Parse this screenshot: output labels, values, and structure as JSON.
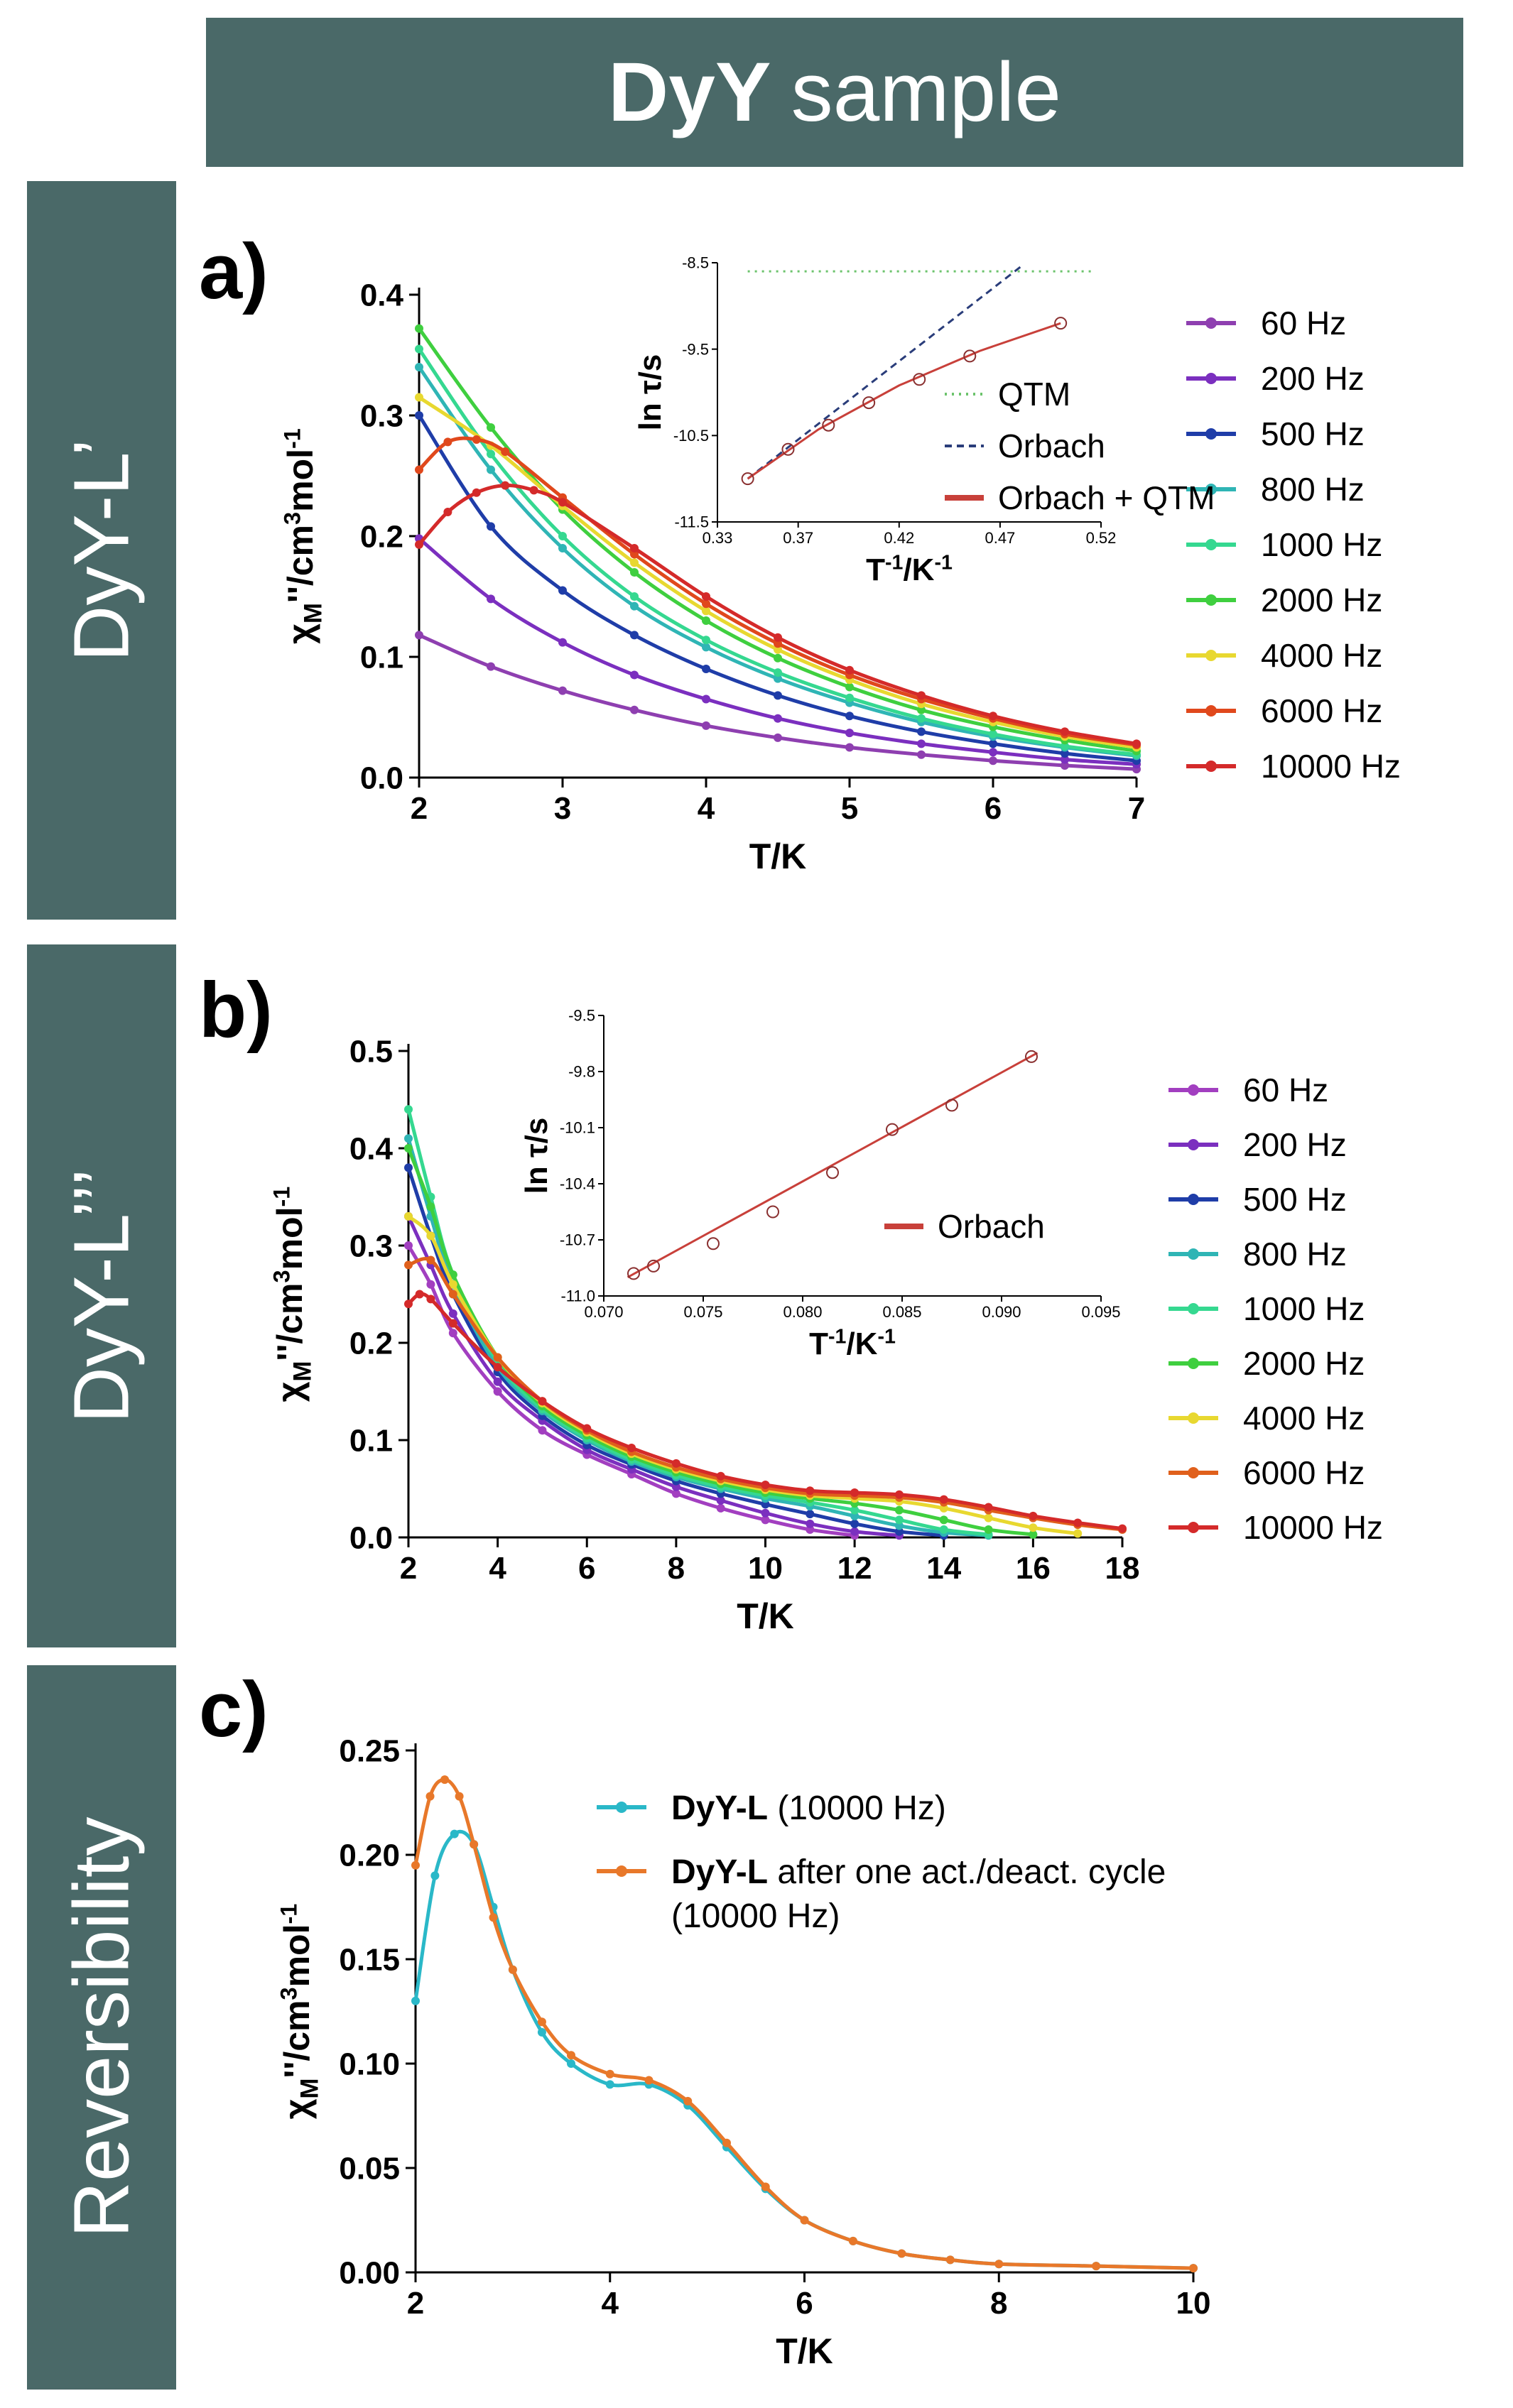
{
  "header": {
    "title_bold": "DyY",
    "title_rest": "sample"
  },
  "side_labels": [
    "DyY-L’",
    "DyY-L’’’",
    "Reversibility"
  ],
  "colors": {
    "panel": "#4a6968"
  },
  "chart_data": [
    {
      "id": "a",
      "panel_label": "a)",
      "type": "line",
      "xlabel": "T/K",
      "ylabel_main": "χ",
      "ylabel_sub": "M",
      "ylabel_rest": "''/cm",
      "ylabel_sup": "3",
      "ylabel_tail": "mol",
      "ylabel_sup2": "-1",
      "xlim": [
        2,
        7
      ],
      "ylim": [
        0,
        0.4
      ],
      "xticks": [
        2,
        3,
        4,
        5,
        6,
        7
      ],
      "yticks": [
        0.0,
        0.1,
        0.2,
        0.3,
        0.4
      ],
      "xtick_labels": [
        "2",
        "3",
        "4",
        "5",
        "6",
        "7"
      ],
      "ytick_labels": [
        "0.0",
        "0.1",
        "0.2",
        "0.3",
        "0.4"
      ],
      "series": [
        {
          "name": "60 Hz",
          "color": "#8e3fb0",
          "x": [
            2.0,
            2.5,
            3.0,
            3.5,
            4.0,
            4.5,
            5.0,
            5.5,
            6.0,
            6.5,
            7.0
          ],
          "y": [
            0.118,
            0.092,
            0.072,
            0.056,
            0.043,
            0.033,
            0.025,
            0.019,
            0.014,
            0.01,
            0.007
          ]
        },
        {
          "name": "200 Hz",
          "color": "#7b2fbf",
          "x": [
            2.0,
            2.5,
            3.0,
            3.5,
            4.0,
            4.5,
            5.0,
            5.5,
            6.0,
            6.5,
            7.0
          ],
          "y": [
            0.198,
            0.148,
            0.112,
            0.085,
            0.065,
            0.049,
            0.037,
            0.028,
            0.021,
            0.015,
            0.011
          ]
        },
        {
          "name": "500 Hz",
          "color": "#1f3da8",
          "x": [
            2.0,
            2.5,
            3.0,
            3.5,
            4.0,
            4.5,
            5.0,
            5.5,
            6.0,
            6.5,
            7.0
          ],
          "y": [
            0.3,
            0.208,
            0.155,
            0.118,
            0.09,
            0.068,
            0.051,
            0.038,
            0.028,
            0.02,
            0.014
          ]
        },
        {
          "name": "800 Hz",
          "color": "#2fb5b5",
          "x": [
            2.0,
            2.5,
            3.0,
            3.5,
            4.0,
            4.5,
            5.0,
            5.5,
            6.0,
            6.5,
            7.0
          ],
          "y": [
            0.34,
            0.255,
            0.19,
            0.142,
            0.108,
            0.082,
            0.062,
            0.046,
            0.034,
            0.025,
            0.018
          ]
        },
        {
          "name": "1000 Hz",
          "color": "#35d890",
          "x": [
            2.0,
            2.5,
            3.0,
            3.5,
            4.0,
            4.5,
            5.0,
            5.5,
            6.0,
            6.5,
            7.0
          ],
          "y": [
            0.355,
            0.268,
            0.2,
            0.15,
            0.114,
            0.087,
            0.066,
            0.049,
            0.036,
            0.026,
            0.019
          ]
        },
        {
          "name": "2000 Hz",
          "color": "#3fcf3f",
          "x": [
            2.0,
            2.5,
            3.0,
            3.5,
            4.0,
            4.5,
            5.0,
            5.5,
            6.0,
            6.5,
            7.0
          ],
          "y": [
            0.372,
            0.29,
            0.222,
            0.17,
            0.13,
            0.099,
            0.075,
            0.056,
            0.042,
            0.031,
            0.022
          ]
        },
        {
          "name": "4000 Hz",
          "color": "#e8d830",
          "x": [
            2.0,
            2.5,
            3.0,
            3.5,
            4.0,
            4.5,
            5.0,
            5.5,
            6.0,
            6.5,
            7.0
          ],
          "y": [
            0.315,
            0.275,
            0.225,
            0.178,
            0.138,
            0.106,
            0.081,
            0.061,
            0.046,
            0.034,
            0.025
          ]
        },
        {
          "name": "6000 Hz",
          "color": "#e0481c",
          "x": [
            2.0,
            2.2,
            2.4,
            2.6,
            3.0,
            3.5,
            4.0,
            4.5,
            5.0,
            5.5,
            6.0,
            6.5,
            7.0
          ],
          "y": [
            0.255,
            0.278,
            0.28,
            0.27,
            0.232,
            0.185,
            0.144,
            0.111,
            0.085,
            0.065,
            0.049,
            0.036,
            0.027
          ]
        },
        {
          "name": "10000 Hz",
          "color": "#d42a2a",
          "x": [
            2.0,
            2.2,
            2.4,
            2.6,
            2.8,
            3.0,
            3.5,
            4.0,
            4.5,
            5.0,
            5.5,
            6.0,
            6.5,
            7.0
          ],
          "y": [
            0.193,
            0.22,
            0.236,
            0.242,
            0.238,
            0.228,
            0.19,
            0.15,
            0.116,
            0.089,
            0.068,
            0.051,
            0.038,
            0.028
          ]
        }
      ],
      "inset": {
        "xlabel": "T",
        "xlabel_sup": "-1",
        "xlabel_rest": "/K",
        "xlabel_sup2": "-1",
        "ylabel": "ln τ/s",
        "xlim": [
          0.33,
          0.52
        ],
        "ylim": [
          -11.5,
          -8.5
        ],
        "xticks": [
          0.33,
          0.37,
          0.42,
          0.47,
          0.52
        ],
        "xtick_labels": [
          "0.33",
          "0.37",
          "0.42",
          "0.47",
          "0.52"
        ],
        "yticks": [
          -11.5,
          -10.5,
          -9.5,
          -8.5
        ],
        "ytick_labels": [
          "-11.5",
          "-10.5",
          "-9.5",
          "-8.5"
        ],
        "points": {
          "x": [
            0.345,
            0.365,
            0.385,
            0.405,
            0.43,
            0.455,
            0.5
          ],
          "y": [
            -11.0,
            -10.66,
            -10.38,
            -10.12,
            -9.85,
            -9.58,
            -9.2
          ]
        },
        "legend": [
          {
            "name": "QTM",
            "style": "dotted",
            "color": "#6cc36c"
          },
          {
            "name": "Orbach",
            "style": "dashed",
            "color": "#2a3d7a"
          },
          {
            "name": "Orbach + QTM",
            "style": "solid",
            "color": "#c8403a"
          }
        ],
        "lines": {
          "qtm": {
            "x": [
              0.345,
              0.515
            ],
            "y": [
              -8.6,
              -8.6
            ]
          },
          "orbach": {
            "x": [
              0.345,
              0.48
            ],
            "y": [
              -11.0,
              -8.55
            ]
          },
          "fit": {
            "x": [
              0.345,
              0.38,
              0.42,
              0.46,
              0.5
            ],
            "y": [
              -11.0,
              -10.43,
              -9.92,
              -9.52,
              -9.2
            ]
          }
        }
      }
    },
    {
      "id": "b",
      "panel_label": "b)",
      "type": "line",
      "xlabel": "T/K",
      "ylabel_main": "χ",
      "ylabel_sub": "M",
      "ylabel_rest": "''/cm",
      "ylabel_sup": "3",
      "ylabel_tail": "mol",
      "ylabel_sup2": "-1",
      "xlim": [
        2,
        18
      ],
      "ylim": [
        0,
        0.5
      ],
      "xticks": [
        2,
        4,
        6,
        8,
        10,
        12,
        14,
        16,
        18
      ],
      "yticks": [
        0.0,
        0.1,
        0.2,
        0.3,
        0.4,
        0.5
      ],
      "xtick_labels": [
        "2",
        "4",
        "6",
        "8",
        "10",
        "12",
        "14",
        "16",
        "18"
      ],
      "ytick_labels": [
        "0.0",
        "0.1",
        "0.2",
        "0.3",
        "0.4",
        "0.5"
      ],
      "series": [
        {
          "name": "60 Hz",
          "color": "#a23fc0",
          "x": [
            2,
            2.5,
            3,
            4,
            5,
            6,
            7,
            8,
            9,
            10,
            11,
            12
          ],
          "y": [
            0.3,
            0.26,
            0.21,
            0.15,
            0.11,
            0.085,
            0.065,
            0.045,
            0.03,
            0.018,
            0.008,
            0.002
          ]
        },
        {
          "name": "200 Hz",
          "color": "#7b2fbf",
          "x": [
            2,
            2.5,
            3,
            4,
            5,
            6,
            7,
            8,
            9,
            10,
            11,
            12,
            13
          ],
          "y": [
            0.33,
            0.28,
            0.23,
            0.16,
            0.12,
            0.09,
            0.07,
            0.052,
            0.038,
            0.025,
            0.014,
            0.006,
            0.002
          ]
        },
        {
          "name": "500 Hz",
          "color": "#1f3da8",
          "x": [
            2,
            2.5,
            3,
            4,
            5,
            6,
            7,
            8,
            9,
            10,
            11,
            12,
            13,
            14
          ],
          "y": [
            0.38,
            0.31,
            0.25,
            0.17,
            0.125,
            0.095,
            0.075,
            0.058,
            0.045,
            0.034,
            0.024,
            0.014,
            0.006,
            0.002
          ]
        },
        {
          "name": "800 Hz",
          "color": "#2fb5b5",
          "x": [
            2,
            2.5,
            3,
            4,
            5,
            6,
            7,
            8,
            9,
            10,
            11,
            12,
            13,
            14,
            15
          ],
          "y": [
            0.41,
            0.33,
            0.26,
            0.175,
            0.13,
            0.1,
            0.078,
            0.062,
            0.05,
            0.04,
            0.032,
            0.022,
            0.012,
            0.005,
            0.002
          ]
        },
        {
          "name": "1000 Hz",
          "color": "#35d890",
          "x": [
            2,
            2.5,
            3,
            4,
            5,
            6,
            7,
            8,
            9,
            10,
            11,
            12,
            13,
            14,
            15
          ],
          "y": [
            0.44,
            0.35,
            0.27,
            0.18,
            0.132,
            0.102,
            0.08,
            0.064,
            0.052,
            0.043,
            0.036,
            0.028,
            0.018,
            0.008,
            0.003
          ]
        },
        {
          "name": "2000 Hz",
          "color": "#3fcf3f",
          "x": [
            2,
            2.5,
            3,
            4,
            5,
            6,
            7,
            8,
            9,
            10,
            11,
            12,
            13,
            14,
            15,
            16
          ],
          "y": [
            0.4,
            0.34,
            0.27,
            0.185,
            0.135,
            0.105,
            0.083,
            0.067,
            0.055,
            0.046,
            0.04,
            0.035,
            0.028,
            0.018,
            0.008,
            0.003
          ]
        },
        {
          "name": "4000 Hz",
          "color": "#e8d830",
          "x": [
            2,
            2.5,
            3,
            4,
            5,
            6,
            7,
            8,
            9,
            10,
            11,
            12,
            13,
            14,
            15,
            16,
            17
          ],
          "y": [
            0.33,
            0.31,
            0.26,
            0.185,
            0.138,
            0.108,
            0.086,
            0.07,
            0.058,
            0.049,
            0.043,
            0.04,
            0.037,
            0.03,
            0.02,
            0.01,
            0.004
          ]
        },
        {
          "name": "6000 Hz",
          "color": "#e0601c",
          "x": [
            2,
            2.5,
            3,
            4,
            5,
            6,
            7,
            8,
            9,
            10,
            11,
            12,
            13,
            14,
            15,
            16,
            17,
            18
          ],
          "y": [
            0.28,
            0.285,
            0.25,
            0.185,
            0.14,
            0.11,
            0.088,
            0.072,
            0.06,
            0.051,
            0.045,
            0.043,
            0.041,
            0.036,
            0.028,
            0.02,
            0.013,
            0.008
          ]
        },
        {
          "name": "10000 Hz",
          "color": "#d42a2a",
          "x": [
            2,
            2.25,
            2.5,
            3,
            4,
            5,
            6,
            7,
            8,
            9,
            10,
            11,
            12,
            13,
            14,
            15,
            16,
            17,
            18
          ],
          "y": [
            0.24,
            0.25,
            0.245,
            0.22,
            0.175,
            0.14,
            0.112,
            0.092,
            0.076,
            0.063,
            0.054,
            0.048,
            0.046,
            0.044,
            0.039,
            0.031,
            0.022,
            0.015,
            0.009
          ]
        }
      ],
      "inset": {
        "xlabel": "T",
        "xlabel_sup": "-1",
        "xlabel_rest": "/K",
        "xlabel_sup2": "-1",
        "ylabel": "ln τ/s",
        "xlim": [
          0.07,
          0.095
        ],
        "ylim": [
          -11.0,
          -9.5
        ],
        "xticks": [
          0.07,
          0.075,
          0.08,
          0.085,
          0.09,
          0.095
        ],
        "xtick_labels": [
          "0.070",
          "0.075",
          "0.080",
          "0.085",
          "0.090",
          "0.095"
        ],
        "yticks": [
          -11.0,
          -10.7,
          -10.4,
          -10.1,
          -9.8,
          -9.5
        ],
        "ytick_labels": [
          "-11.0",
          "-10.7",
          "-10.4",
          "-10.1",
          "-9.8",
          "-9.5"
        ],
        "points": {
          "x": [
            0.0715,
            0.0725,
            0.0755,
            0.0785,
            0.0815,
            0.0845,
            0.0875,
            0.0915
          ],
          "y": [
            -10.88,
            -10.84,
            -10.72,
            -10.55,
            -10.34,
            -10.11,
            -9.98,
            -9.72
          ]
        },
        "legend": [
          {
            "name": "Orbach",
            "style": "solid",
            "color": "#c8403a"
          }
        ],
        "lines": {
          "fit": {
            "x": [
              0.0712,
              0.0918
            ],
            "y": [
              -10.9,
              -9.7
            ]
          }
        }
      }
    },
    {
      "id": "c",
      "panel_label": "c)",
      "type": "line",
      "xlabel": "T/K",
      "ylabel_main": "χ",
      "ylabel_sub": "M",
      "ylabel_rest": "''/cm",
      "ylabel_sup": "3",
      "ylabel_tail": "mol",
      "ylabel_sup2": "-1",
      "xlim": [
        2,
        10
      ],
      "ylim": [
        0,
        0.25
      ],
      "xticks": [
        2,
        4,
        6,
        8,
        10
      ],
      "yticks": [
        0.0,
        0.05,
        0.1,
        0.15,
        0.2,
        0.25
      ],
      "xtick_labels": [
        "2",
        "4",
        "6",
        "8",
        "10"
      ],
      "ytick_labels": [
        "0.00",
        "0.05",
        "0.10",
        "0.15",
        "0.20",
        "0.25"
      ],
      "series": [
        {
          "name_bold": "DyY-L",
          "name_rest": " (10000 Hz)",
          "color": "#2ab8c8",
          "x": [
            2.0,
            2.2,
            2.4,
            2.6,
            2.8,
            3.0,
            3.3,
            3.6,
            4.0,
            4.4,
            4.8,
            5.2,
            5.6,
            6.0,
            6.5,
            7.0,
            7.5,
            8.0,
            9.0,
            10.0
          ],
          "y": [
            0.13,
            0.19,
            0.21,
            0.205,
            0.175,
            0.145,
            0.115,
            0.1,
            0.09,
            0.09,
            0.08,
            0.06,
            0.04,
            0.025,
            0.015,
            0.009,
            0.006,
            0.004,
            0.003,
            0.002
          ]
        },
        {
          "name_bold": "DyY-L",
          "name_rest": " after one act./deact. cycle (10000 Hz)",
          "color": "#e8782a",
          "x": [
            2.0,
            2.15,
            2.3,
            2.45,
            2.6,
            2.8,
            3.0,
            3.3,
            3.6,
            4.0,
            4.4,
            4.8,
            5.2,
            5.6,
            6.0,
            6.5,
            7.0,
            7.5,
            8.0,
            9.0,
            10.0
          ],
          "y": [
            0.195,
            0.228,
            0.236,
            0.228,
            0.205,
            0.17,
            0.145,
            0.12,
            0.104,
            0.095,
            0.092,
            0.082,
            0.062,
            0.041,
            0.025,
            0.015,
            0.009,
            0.006,
            0.004,
            0.003,
            0.002
          ]
        }
      ]
    }
  ]
}
